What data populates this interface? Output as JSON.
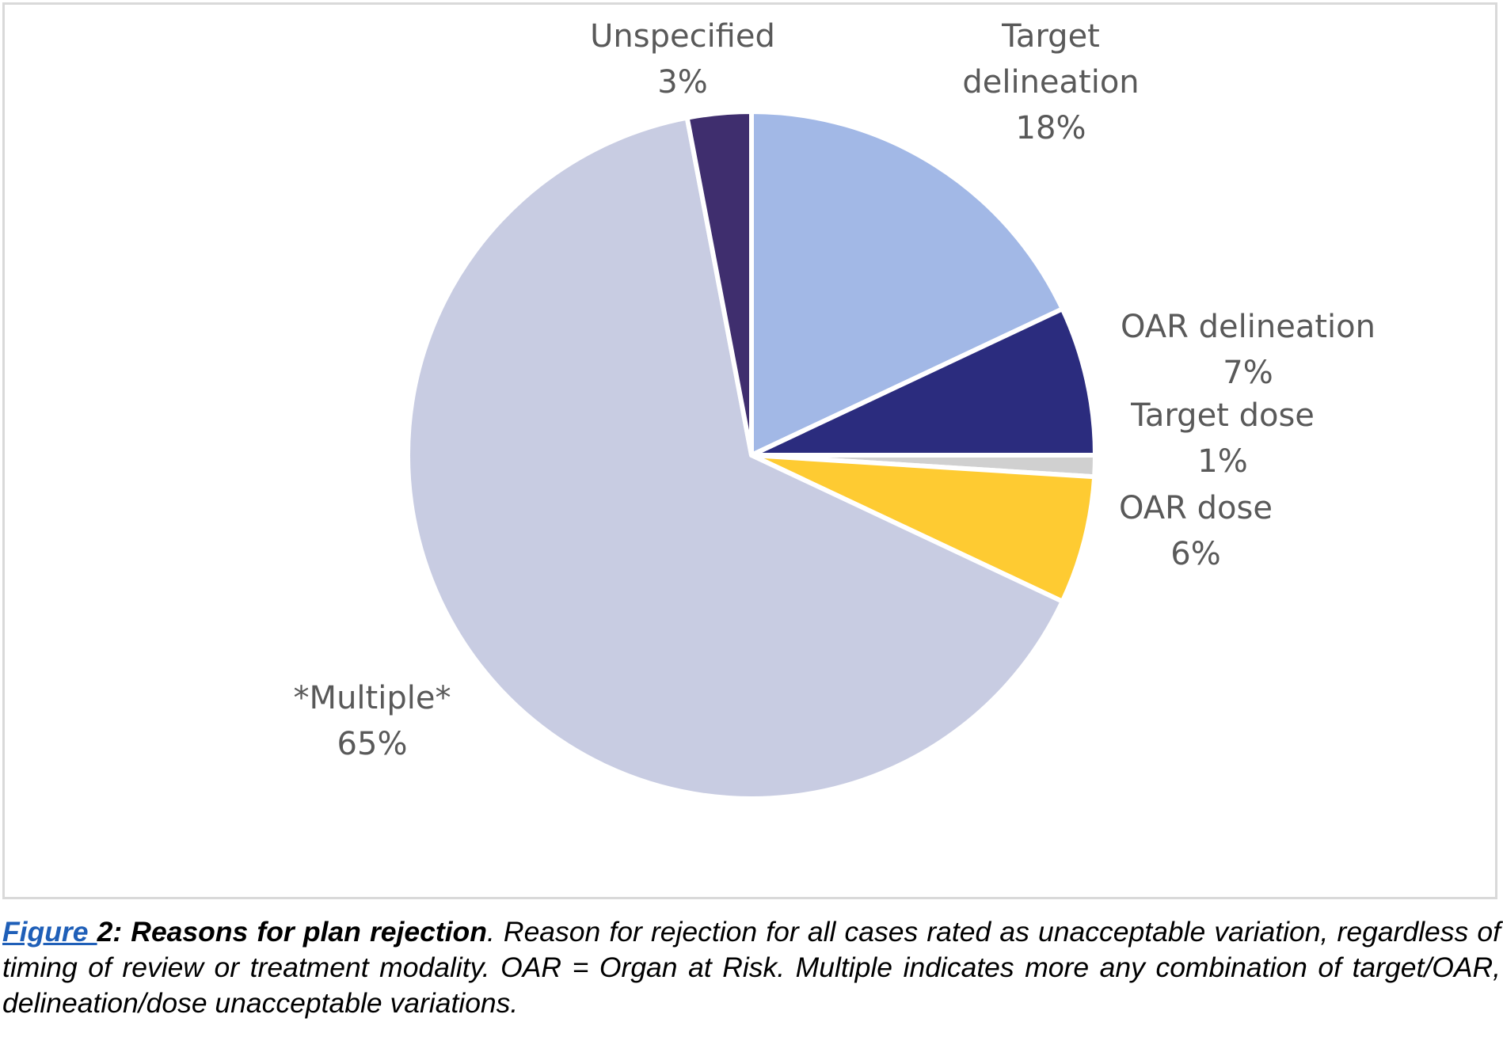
{
  "chart_data": {
    "type": "pie",
    "title": "",
    "slices": [
      {
        "name": "Target delineation",
        "value": 18,
        "label": "18%",
        "color": "#a2b8e6"
      },
      {
        "name": "OAR delineation",
        "value": 7,
        "label": "7%",
        "color": "#2b2c7e"
      },
      {
        "name": "Target dose",
        "value": 1,
        "label": "1%",
        "color": "#d0d0d0"
      },
      {
        "name": "OAR dose",
        "value": 6,
        "label": "6%",
        "color": "#fecb32"
      },
      {
        "name": "*Multiple*",
        "value": 65,
        "label": "65%",
        "color": "#c8cce2"
      },
      {
        "name": "Unspecified",
        "value": 3,
        "label": "3%",
        "color": "#3f2e6e"
      }
    ],
    "slice_border_color": "#ffffff",
    "label_color": "#595959"
  },
  "caption": {
    "link_text": "Figure ",
    "bold_text": "2: Reasons for plan rejection",
    "body_text": ". Reason for rejection for all cases rated as unacceptable variation, regardless of timing of review or treatment modality. OAR = Organ at Risk. Multiple indicates more any combination of target/OAR, delineation/dose unacceptable variations."
  }
}
